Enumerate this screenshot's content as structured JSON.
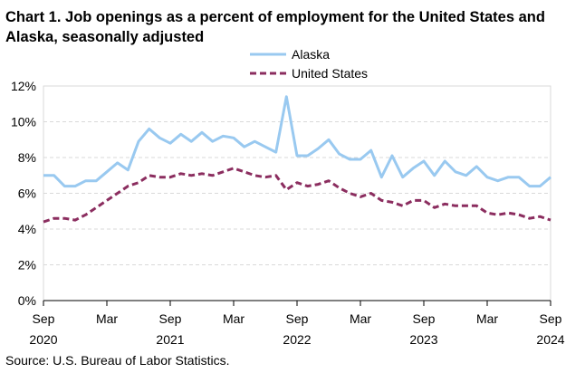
{
  "chart_data": {
    "type": "line",
    "title": "Chart 1. Job openings as a percent of employment for the United States and Alaska, seasonally adjusted",
    "source": "Source: U.S. Bureau of Labor Statistics.",
    "y_ticks": [
      "12%",
      "10%",
      "8%",
      "6%",
      "4%",
      "2%",
      "0%"
    ],
    "y_tick_values": [
      12,
      10,
      8,
      6,
      4,
      2,
      0
    ],
    "ylim": [
      0,
      12
    ],
    "x_ticks": [
      {
        "index": 0,
        "month": "Sep",
        "year": "2020"
      },
      {
        "index": 6,
        "month": "Mar",
        "year": ""
      },
      {
        "index": 12,
        "month": "Sep",
        "year": "2021"
      },
      {
        "index": 18,
        "month": "Mar",
        "year": ""
      },
      {
        "index": 24,
        "month": "Sep",
        "year": "2022"
      },
      {
        "index": 30,
        "month": "Mar",
        "year": ""
      },
      {
        "index": 36,
        "month": "Sep",
        "year": "2023"
      },
      {
        "index": 42,
        "month": "Mar",
        "year": ""
      },
      {
        "index": 48,
        "month": "Sep",
        "year": "2024"
      }
    ],
    "x_range": [
      "2020-09",
      "2024-09"
    ],
    "grid": true,
    "legend_position": "top-center",
    "series": [
      {
        "name": "Alaska",
        "color": "#99c9f0",
        "style": "solid",
        "values": [
          7.0,
          7.0,
          6.4,
          6.4,
          6.7,
          6.7,
          7.2,
          7.7,
          7.3,
          8.9,
          9.6,
          9.1,
          8.8,
          9.3,
          8.9,
          9.4,
          8.9,
          9.2,
          9.1,
          8.6,
          8.9,
          8.6,
          8.3,
          11.4,
          8.1,
          8.1,
          8.5,
          9.0,
          8.2,
          7.9,
          7.9,
          8.4,
          6.9,
          8.1,
          6.9,
          7.4,
          7.8,
          7.0,
          7.8,
          7.2,
          7.0,
          7.5,
          6.9,
          6.7,
          6.9,
          6.9,
          6.4,
          6.4,
          6.9
        ]
      },
      {
        "name": "United States",
        "color": "#8b2d5f",
        "style": "dashed",
        "values": [
          4.4,
          4.6,
          4.6,
          4.5,
          4.8,
          5.2,
          5.6,
          6.0,
          6.4,
          6.6,
          7.0,
          6.9,
          6.9,
          7.1,
          7.0,
          7.1,
          7.0,
          7.2,
          7.4,
          7.2,
          7.0,
          6.9,
          7.0,
          6.2,
          6.6,
          6.4,
          6.5,
          6.7,
          6.3,
          6.0,
          5.8,
          6.0,
          5.6,
          5.5,
          5.3,
          5.6,
          5.6,
          5.2,
          5.4,
          5.3,
          5.3,
          5.3,
          4.9,
          4.8,
          4.9,
          4.8,
          4.6,
          4.7,
          4.5
        ]
      }
    ]
  }
}
